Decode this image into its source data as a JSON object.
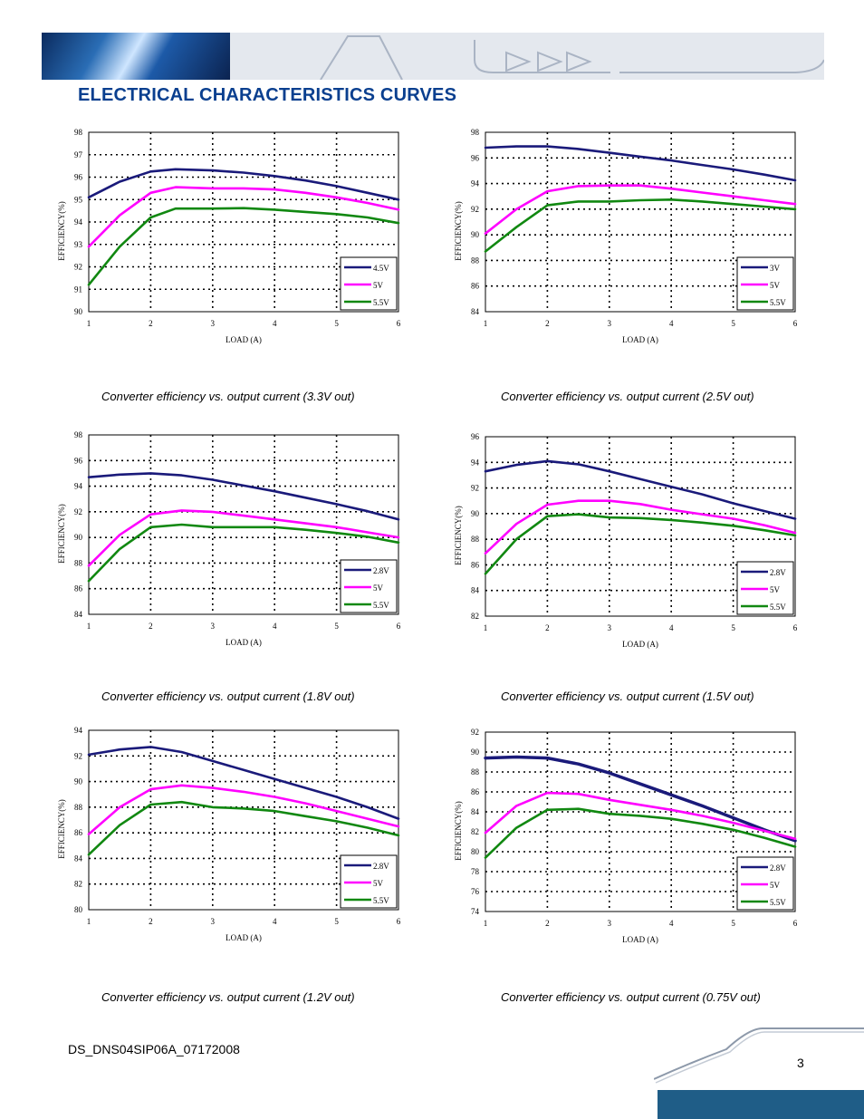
{
  "header": {
    "title": "ELECTRICAL CHARACTERISTICS CURVES"
  },
  "footer": {
    "doc_id": "DS_DNS04SIP06A_07172008",
    "page_number": "3"
  },
  "colors": {
    "heading": "#0a3f8f",
    "series_4_5V": "#1a1a7a",
    "series_3V": "#1a1a7a",
    "series_2_8V": "#1a1a7a",
    "series_5V": "#ff00ff",
    "series_5_5V": "#118811",
    "footer_band": "#1f5d87"
  },
  "chart_data": [
    {
      "type": "line",
      "caption": "Converter efficiency vs. output current (3.3V out)",
      "xlabel": "LOAD (A)",
      "ylabel": "EFFICIENCY(%)",
      "xlim": [
        1,
        6
      ],
      "ylim": [
        90,
        98
      ],
      "xticks": [
        "1",
        "2",
        "3",
        "4",
        "5",
        "6"
      ],
      "yticks": [
        "90",
        "91",
        "92",
        "93",
        "94",
        "95",
        "96",
        "97",
        "98"
      ],
      "grid": true,
      "legend_position": "bottom-right",
      "x": [
        1,
        1.5,
        2,
        2.4,
        3,
        3.5,
        4,
        4.5,
        5,
        5.5,
        6
      ],
      "series": [
        {
          "name": "4.5V",
          "color": "#1a1a7a",
          "values": [
            95.1,
            95.8,
            96.25,
            96.35,
            96.3,
            96.2,
            96.05,
            95.85,
            95.6,
            95.3,
            95.0
          ]
        },
        {
          "name": "5V",
          "color": "#ff00ff",
          "values": [
            92.9,
            94.3,
            95.3,
            95.55,
            95.5,
            95.5,
            95.45,
            95.3,
            95.1,
            94.85,
            94.55
          ]
        },
        {
          "name": "5.5V",
          "color": "#118811",
          "values": [
            91.2,
            92.9,
            94.2,
            94.6,
            94.6,
            94.62,
            94.55,
            94.45,
            94.35,
            94.2,
            93.95
          ]
        }
      ]
    },
    {
      "type": "line",
      "caption": "Converter efficiency vs. output current (2.5V out)",
      "xlabel": "LOAD (A)",
      "ylabel": "EFFICIENCY(%)",
      "xlim": [
        1,
        6
      ],
      "ylim": [
        84,
        98
      ],
      "xticks": [
        "1",
        "2",
        "3",
        "4",
        "5",
        "6"
      ],
      "yticks": [
        "84",
        "86",
        "88",
        "90",
        "92",
        "94",
        "96",
        "98"
      ],
      "grid": true,
      "legend_position": "bottom-right",
      "x": [
        1,
        1.5,
        2,
        2.5,
        3,
        3.5,
        4,
        4.5,
        5,
        5.5,
        6
      ],
      "series": [
        {
          "name": "3V",
          "color": "#1a1a7a",
          "values": [
            96.8,
            96.9,
            96.9,
            96.7,
            96.4,
            96.1,
            95.8,
            95.45,
            95.1,
            94.7,
            94.25
          ]
        },
        {
          "name": "5V",
          "color": "#ff00ff",
          "values": [
            90.1,
            92.0,
            93.4,
            93.8,
            93.85,
            93.85,
            93.6,
            93.3,
            93.0,
            92.7,
            92.4
          ]
        },
        {
          "name": "5.5V",
          "color": "#118811",
          "values": [
            88.7,
            90.6,
            92.3,
            92.6,
            92.6,
            92.7,
            92.75,
            92.6,
            92.4,
            92.2,
            92.0
          ]
        }
      ]
    },
    {
      "type": "line",
      "caption": "Converter efficiency vs. output current (1.8V out)",
      "xlabel": "LOAD (A)",
      "ylabel": "EFFICIENCY(%)",
      "xlim": [
        1,
        6
      ],
      "ylim": [
        84,
        98
      ],
      "xticks": [
        "1",
        "2",
        "3",
        "4",
        "5",
        "6"
      ],
      "yticks": [
        "84",
        "86",
        "88",
        "90",
        "92",
        "94",
        "96",
        "98"
      ],
      "grid": true,
      "legend_position": "bottom-right",
      "x": [
        1,
        1.5,
        2,
        2.5,
        3,
        3.5,
        4,
        4.5,
        5,
        5.5,
        6
      ],
      "series": [
        {
          "name": "2.8V",
          "color": "#1a1a7a",
          "values": [
            94.7,
            94.9,
            95.0,
            94.85,
            94.5,
            94.05,
            93.6,
            93.1,
            92.6,
            92.05,
            91.4
          ]
        },
        {
          "name": "5V",
          "color": "#ff00ff",
          "values": [
            87.8,
            90.2,
            91.8,
            92.1,
            92.0,
            91.7,
            91.4,
            91.1,
            90.8,
            90.4,
            90.0
          ]
        },
        {
          "name": "5.5V",
          "color": "#118811",
          "values": [
            86.6,
            89.1,
            90.8,
            91.0,
            90.8,
            90.8,
            90.8,
            90.6,
            90.35,
            90.05,
            89.6
          ]
        }
      ]
    },
    {
      "type": "line",
      "caption": "Converter efficiency vs. output current (1.5V out)",
      "xlabel": "LOAD (A)",
      "ylabel": "EFFICIENCY(%)",
      "xlim": [
        1,
        6
      ],
      "ylim": [
        82,
        96
      ],
      "xticks": [
        "1",
        "2",
        "3",
        "4",
        "5",
        "6"
      ],
      "yticks": [
        "82",
        "84",
        "86",
        "88",
        "90",
        "92",
        "94",
        "96"
      ],
      "grid": true,
      "legend_position": "bottom-right",
      "x": [
        1,
        1.5,
        2,
        2.5,
        3,
        3.5,
        4,
        4.5,
        5,
        5.5,
        6
      ],
      "series": [
        {
          "name": "2.8V",
          "color": "#1a1a7a",
          "values": [
            93.3,
            93.8,
            94.1,
            93.85,
            93.3,
            92.7,
            92.1,
            91.5,
            90.8,
            90.2,
            89.6
          ]
        },
        {
          "name": "5V",
          "color": "#ff00ff",
          "values": [
            86.9,
            89.2,
            90.7,
            91.0,
            91.0,
            90.75,
            90.3,
            89.95,
            89.6,
            89.1,
            88.5
          ]
        },
        {
          "name": "5.5V",
          "color": "#118811",
          "values": [
            85.3,
            88.0,
            89.8,
            89.95,
            89.7,
            89.65,
            89.5,
            89.3,
            89.05,
            88.7,
            88.3
          ]
        }
      ]
    },
    {
      "type": "line",
      "caption": "Converter efficiency vs. output current (1.2V out)",
      "xlabel": "LOAD (A)",
      "ylabel": "EFFICIENCY(%)",
      "xlim": [
        1,
        6
      ],
      "ylim": [
        80,
        94
      ],
      "xticks": [
        "1",
        "2",
        "3",
        "4",
        "5",
        "6"
      ],
      "yticks": [
        "80",
        "82",
        "84",
        "86",
        "88",
        "90",
        "92",
        "94"
      ],
      "grid": true,
      "legend_position": "bottom-right",
      "x": [
        1,
        1.5,
        2,
        2.5,
        3,
        3.5,
        4,
        4.5,
        5,
        5.5,
        6
      ],
      "series": [
        {
          "name": "2.8V",
          "color": "#1a1a7a",
          "values": [
            92.1,
            92.5,
            92.7,
            92.3,
            91.6,
            90.9,
            90.2,
            89.5,
            88.8,
            88.0,
            87.1
          ]
        },
        {
          "name": "5V",
          "color": "#ff00ff",
          "values": [
            85.9,
            88.0,
            89.4,
            89.7,
            89.5,
            89.2,
            88.8,
            88.3,
            87.7,
            87.1,
            86.5
          ]
        },
        {
          "name": "5.5V",
          "color": "#118811",
          "values": [
            84.3,
            86.6,
            88.2,
            88.4,
            88.0,
            87.9,
            87.7,
            87.3,
            86.9,
            86.4,
            85.8
          ]
        }
      ]
    },
    {
      "type": "line",
      "caption": "Converter efficiency vs. output current (0.75V out)",
      "xlabel": "LOAD (A)",
      "ylabel": "EFFICIENCY(%)",
      "xlim": [
        1,
        6
      ],
      "ylim": [
        74,
        92
      ],
      "xticks": [
        "1",
        "2",
        "3",
        "4",
        "5",
        "6"
      ],
      "yticks": [
        "74",
        "76",
        "78",
        "80",
        "82",
        "84",
        "86",
        "88",
        "90",
        "92"
      ],
      "grid": true,
      "legend_position": "bottom-right",
      "x": [
        1,
        1.5,
        2,
        2.5,
        3,
        3.5,
        4,
        4.5,
        5,
        5.5,
        6
      ],
      "series": [
        {
          "name": "2.8V",
          "color": "#1a1a7a",
          "values": [
            89.4,
            89.5,
            89.4,
            88.8,
            87.9,
            86.8,
            85.7,
            84.6,
            83.4,
            82.2,
            81.1
          ]
        },
        {
          "name": "5V",
          "color": "#ff00ff",
          "values": [
            81.9,
            84.6,
            85.9,
            85.8,
            85.2,
            84.7,
            84.2,
            83.6,
            82.9,
            82.1,
            81.3
          ]
        },
        {
          "name": "5.5V",
          "color": "#118811",
          "values": [
            79.4,
            82.4,
            84.2,
            84.3,
            83.8,
            83.6,
            83.3,
            82.8,
            82.2,
            81.4,
            80.5
          ]
        }
      ]
    }
  ]
}
